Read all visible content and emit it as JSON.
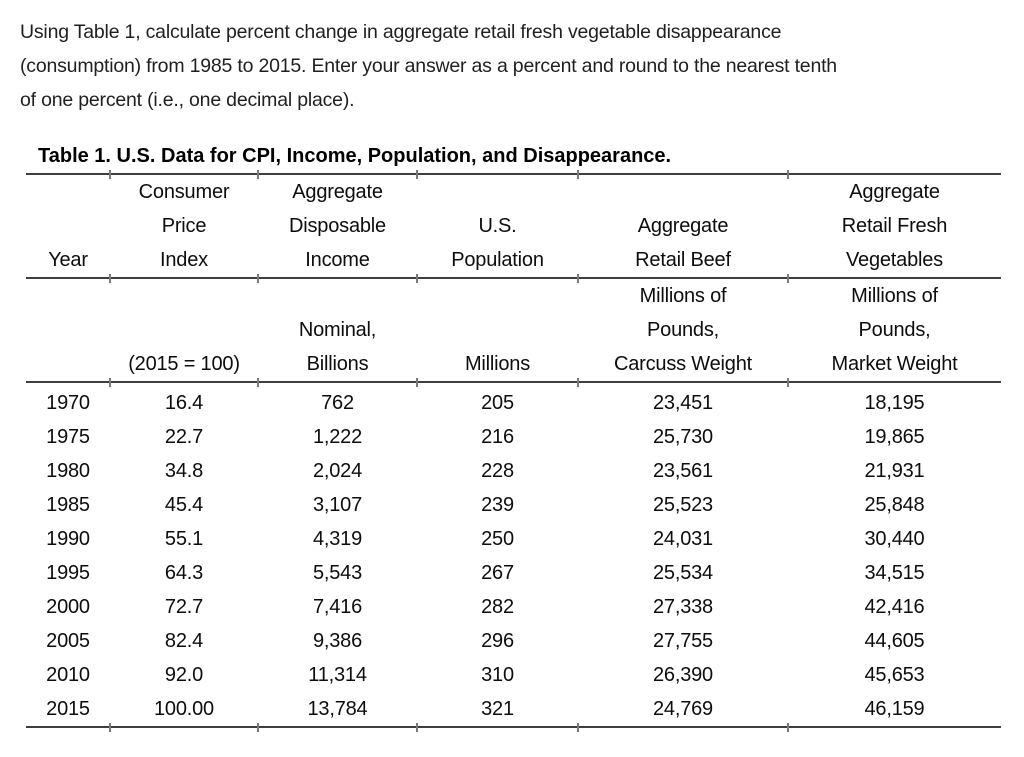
{
  "question": {
    "lines": [
      "Using Table 1, calculate percent change in aggregate retail fresh vegetable disappearance",
      "(consumption) from 1985 to 2015. Enter your answer as a percent and round to the nearest tenth",
      "of one percent (i.e., one decimal place)."
    ]
  },
  "table": {
    "title": "Table 1. U.S. Data for CPI, Income, Population, and Disappearance.",
    "header1": {
      "year": [
        "",
        "",
        "Year"
      ],
      "cpi": [
        "Consumer",
        "Price",
        "Index"
      ],
      "income": [
        "Aggregate",
        "Disposable",
        "Income"
      ],
      "population": [
        "",
        "U.S.",
        "Population"
      ],
      "beef": [
        "",
        "Aggregate",
        "Retail Beef"
      ],
      "vegetables": [
        "Aggregate",
        "Retail Fresh",
        "Vegetables"
      ]
    },
    "header2": {
      "year": [
        "",
        "",
        ""
      ],
      "cpi": [
        "",
        "",
        "(2015 = 100)"
      ],
      "income": [
        "",
        "Nominal,",
        "Billions"
      ],
      "population": [
        "",
        "",
        "Millions"
      ],
      "beef": [
        "Millions of",
        "Pounds,",
        "Carcuss Weight"
      ],
      "vegetables": [
        "Millions of",
        "Pounds,",
        "Market Weight"
      ]
    },
    "rows": [
      {
        "year": "1970",
        "cpi": "16.4",
        "income": "762",
        "population": "205",
        "beef": "23,451",
        "vegetables": "18,195"
      },
      {
        "year": "1975",
        "cpi": "22.7",
        "income": "1,222",
        "population": "216",
        "beef": "25,730",
        "vegetables": "19,865"
      },
      {
        "year": "1980",
        "cpi": "34.8",
        "income": "2,024",
        "population": "228",
        "beef": "23,561",
        "vegetables": "21,931"
      },
      {
        "year": "1985",
        "cpi": "45.4",
        "income": "3,107",
        "population": "239",
        "beef": "25,523",
        "vegetables": "25,848"
      },
      {
        "year": "1990",
        "cpi": "55.1",
        "income": "4,319",
        "population": "250",
        "beef": "24,031",
        "vegetables": "30,440"
      },
      {
        "year": "1995",
        "cpi": "64.3",
        "income": "5,543",
        "population": "267",
        "beef": "25,534",
        "vegetables": "34,515"
      },
      {
        "year": "2000",
        "cpi": "72.7",
        "income": "7,416",
        "population": "282",
        "beef": "27,338",
        "vegetables": "42,416"
      },
      {
        "year": "2005",
        "cpi": "82.4",
        "income": "9,386",
        "population": "296",
        "beef": "27,755",
        "vegetables": "44,605"
      },
      {
        "year": "2010",
        "cpi": "92.0",
        "income": "11,314",
        "population": "310",
        "beef": "26,390",
        "vegetables": "45,653"
      },
      {
        "year": "2015",
        "cpi": "100.00",
        "income": "13,784",
        "population": "321",
        "beef": "24,769",
        "vegetables": "46,159"
      }
    ]
  }
}
